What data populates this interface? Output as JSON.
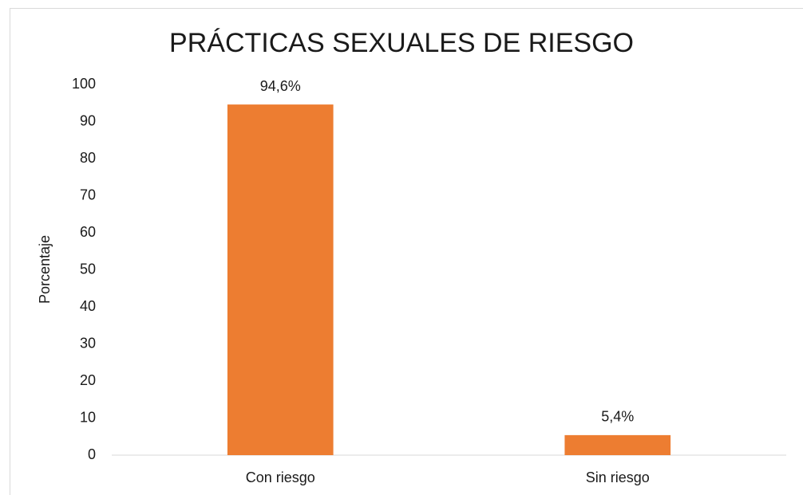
{
  "chart_data": {
    "type": "bar",
    "title": "PRÁCTICAS SEXUALES DE RIESGO",
    "y_label": "Porcentaje",
    "categories": [
      "Con riesgo",
      "Sin riesgo"
    ],
    "values": [
      94.6,
      5.4
    ],
    "value_labels": [
      "94,6%",
      "5,4%"
    ],
    "color": "#ed7d31",
    "ylim": [
      0,
      100
    ],
    "yticks": [
      0,
      10,
      20,
      30,
      40,
      50,
      60,
      70,
      80,
      90,
      100
    ],
    "grid": false
  }
}
